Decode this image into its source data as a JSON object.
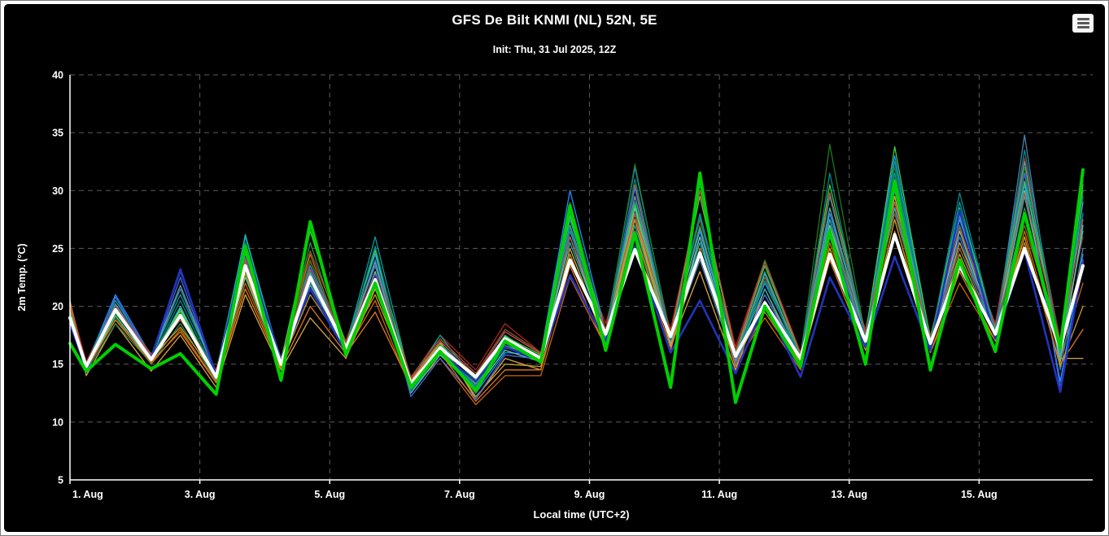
{
  "header": {
    "title": "GFS De Bilt KNMI (NL) 52N, 5E",
    "subtitle": "Init: Thu, 31 Jul 2025, 12Z",
    "menu_icon": "hamburger-icon"
  },
  "colors": {
    "background": "#000000",
    "text": "#ffffff",
    "gridline": "#5c5c5c",
    "axis": "#ffffff",
    "ensemble_mean": "#ffffff",
    "operational": "#00d000",
    "control": "#2233bb"
  },
  "chart_data": {
    "type": "line",
    "title": "GFS De Bilt KNMI (NL) 52N, 5E",
    "subtitle": "Init: Thu, 31 Jul 2025, 12Z",
    "xlabel": "Local time (UTC+2)",
    "ylabel": "2m Temp. (°C)",
    "ylim": [
      5,
      40
    ],
    "y_ticks": [
      5,
      10,
      15,
      20,
      25,
      30,
      35,
      40
    ],
    "xlim": [
      0,
      15.75
    ],
    "x_unit_note": "days since 1 Aug 00:00 local time",
    "x_ticks": [
      {
        "t": 0,
        "label": "1. Aug"
      },
      {
        "t": 2,
        "label": "3. Aug"
      },
      {
        "t": 4,
        "label": "5. Aug"
      },
      {
        "t": 6,
        "label": "7. Aug"
      },
      {
        "t": 8,
        "label": "9. Aug"
      },
      {
        "t": 10,
        "label": "11. Aug"
      },
      {
        "t": 12,
        "label": "13. Aug"
      },
      {
        "t": 14,
        "label": "15. Aug"
      }
    ],
    "grid": "dashed",
    "legend": "none",
    "x": [
      0,
      0.25,
      0.7,
      1.25,
      1.7,
      2.25,
      2.7,
      3.25,
      3.7,
      4.25,
      4.7,
      5.25,
      5.7,
      6.25,
      6.7,
      7.25,
      7.7,
      8.25,
      8.7,
      9.25,
      9.7,
      10.25,
      10.7,
      11.25,
      11.7,
      12.25,
      12.7,
      13.25,
      13.7,
      14.25,
      14.7,
      15.25,
      15.6
    ],
    "series": [
      {
        "name": "member-01",
        "color": "#b22222",
        "width": 1.3,
        "values": [
          20.3,
          15.2,
          20.5,
          15.8,
          19.0,
          14.5,
          24.5,
          15.5,
          23.8,
          17.0,
          24.5,
          13.8,
          17.5,
          14.5,
          18.5,
          16.0,
          26.5,
          18.5,
          27.5,
          18.0,
          29.5,
          16.5,
          24.0,
          16.0,
          27.5,
          18.0,
          30.0,
          17.5,
          26.5,
          18.5,
          32.8,
          17.0,
          26.0
        ]
      },
      {
        "name": "member-02",
        "color": "#cc6600",
        "width": 1.3,
        "values": [
          20.0,
          14.5,
          19.0,
          15.0,
          18.0,
          13.5,
          22.0,
          14.8,
          24.5,
          16.0,
          20.5,
          12.8,
          15.5,
          11.5,
          14.0,
          14.0,
          22.5,
          16.5,
          30.5,
          17.0,
          26.0,
          15.0,
          19.0,
          14.5,
          25.5,
          16.5,
          28.5,
          16.0,
          22.0,
          17.0,
          26.5,
          15.5,
          22.0
        ]
      },
      {
        "name": "member-03",
        "color": "#d9a441",
        "width": 1.3,
        "values": [
          20.5,
          14.0,
          18.5,
          14.4,
          17.5,
          13.0,
          21.0,
          14.5,
          19.0,
          15.5,
          21.5,
          13.5,
          17.0,
          12.0,
          15.5,
          14.5,
          25.0,
          17.0,
          28.0,
          16.5,
          23.0,
          14.5,
          21.5,
          15.0,
          27.0,
          17.5,
          29.5,
          16.5,
          25.5,
          18.0,
          28.0,
          15.5,
          15.5
        ]
      },
      {
        "name": "member-04",
        "color": "#1e90ff",
        "width": 1.3,
        "values": [
          19.2,
          14.9,
          21.0,
          15.7,
          23.0,
          14.2,
          24.8,
          15.5,
          23.5,
          16.8,
          24.5,
          13.0,
          16.5,
          12.5,
          16.0,
          15.8,
          30.0,
          17.8,
          32.0,
          17.5,
          26.5,
          15.5,
          22.0,
          15.8,
          28.0,
          17.5,
          33.0,
          17.0,
          27.5,
          18.0,
          30.5,
          13.5,
          24.5
        ]
      },
      {
        "name": "member-05",
        "color": "#4682b4",
        "width": 1.3,
        "values": [
          19.0,
          14.7,
          20.0,
          15.5,
          21.5,
          14.0,
          23.5,
          15.3,
          22.0,
          16.5,
          23.5,
          12.8,
          16.0,
          13.0,
          16.5,
          15.5,
          26.5,
          17.5,
          28.5,
          17.0,
          24.0,
          15.0,
          20.5,
          15.5,
          26.0,
          17.0,
          30.0,
          16.5,
          25.0,
          17.5,
          34.8,
          14.5,
          25.0
        ]
      },
      {
        "name": "member-06",
        "color": "#00a0a0",
        "width": 1.3,
        "values": [
          19.5,
          15.0,
          20.5,
          15.6,
          21.0,
          14.3,
          26.0,
          15.2,
          23.0,
          16.6,
          26.0,
          13.5,
          17.5,
          13.5,
          17.0,
          15.6,
          27.5,
          17.7,
          29.0,
          17.2,
          28.0,
          15.8,
          23.0,
          15.6,
          29.5,
          17.2,
          31.5,
          17.0,
          29.0,
          17.8,
          31.5,
          16.0,
          28.0
        ]
      },
      {
        "name": "member-07",
        "color": "#20b2aa",
        "width": 1.3,
        "values": [
          19.3,
          14.6,
          19.5,
          15.3,
          20.0,
          13.8,
          26.2,
          15.0,
          21.5,
          16.3,
          22.5,
          13.2,
          16.8,
          13.8,
          17.5,
          15.4,
          25.5,
          17.4,
          27.0,
          17.1,
          25.5,
          15.6,
          21.5,
          15.4,
          27.5,
          16.8,
          28.5,
          16.6,
          26.0,
          17.4,
          29.5,
          15.8,
          26.5
        ]
      },
      {
        "name": "member-08",
        "color": "#2e8b57",
        "width": 1.3,
        "values": [
          18.8,
          14.4,
          18.5,
          15.1,
          18.5,
          13.6,
          24.0,
          14.8,
          25.5,
          16.2,
          25.0,
          13.0,
          16.2,
          13.2,
          16.8,
          15.3,
          28.0,
          17.2,
          26.5,
          17.0,
          30.5,
          15.4,
          22.5,
          15.2,
          28.5,
          16.6,
          30.5,
          16.4,
          27.0,
          17.2,
          28.5,
          16.2,
          30.0
        ]
      },
      {
        "name": "member-09",
        "color": "#1c7a1c",
        "width": 1.3,
        "values": [
          19.8,
          14.9,
          19.0,
          15.5,
          19.5,
          14.1,
          23.0,
          15.1,
          24.0,
          16.5,
          24.0,
          13.4,
          16.5,
          13.6,
          17.2,
          15.7,
          29.0,
          17.6,
          32.3,
          17.3,
          27.0,
          15.9,
          24.0,
          15.7,
          34.0,
          17.4,
          32.0,
          17.1,
          28.0,
          18.0,
          32.0,
          16.6,
          31.0
        ]
      },
      {
        "name": "member-10",
        "color": "#66cdaa",
        "width": 1.3,
        "values": [
          19.1,
          14.5,
          19.2,
          15.2,
          19.8,
          13.7,
          22.5,
          14.9,
          22.8,
          16.1,
          23.0,
          12.5,
          15.8,
          12.8,
          16.2,
          15.2,
          26.0,
          17.3,
          28.5,
          16.8,
          26.0,
          15.2,
          21.0,
          15.3,
          27.0,
          16.9,
          29.0,
          16.7,
          26.5,
          17.6,
          30.0,
          15.2,
          27.0
        ]
      },
      {
        "name": "member-11",
        "color": "#8b5a2b",
        "width": 1.3,
        "values": [
          20.1,
          15.1,
          19.8,
          15.9,
          18.8,
          14.4,
          23.8,
          15.4,
          24.8,
          16.9,
          23.8,
          13.9,
          17.2,
          14.2,
          18.0,
          16.0,
          27.0,
          18.0,
          29.5,
          17.8,
          27.5,
          16.2,
          22.5,
          16.0,
          26.5,
          17.8,
          28.0,
          17.3,
          25.0,
          18.2,
          27.0,
          16.8,
          24.0
        ]
      },
      {
        "name": "member-12",
        "color": "#c8a020",
        "width": 1.3,
        "values": [
          20.4,
          14.8,
          19.5,
          15.5,
          18.2,
          14.0,
          22.8,
          15.0,
          21.0,
          16.4,
          21.0,
          13.6,
          16.8,
          12.2,
          15.0,
          14.8,
          24.5,
          16.8,
          27.5,
          16.6,
          24.5,
          15.3,
          20.0,
          15.1,
          25.0,
          16.5,
          27.5,
          16.3,
          24.5,
          17.3,
          26.0,
          14.8,
          20.0
        ]
      },
      {
        "name": "member-13",
        "color": "#4169e1",
        "width": 1.3,
        "values": [
          18.7,
          14.3,
          20.8,
          15.4,
          22.5,
          13.9,
          24.2,
          15.1,
          22.5,
          16.3,
          24.0,
          12.2,
          15.5,
          12.0,
          15.8,
          15.4,
          28.5,
          17.4,
          30.2,
          17.0,
          25.0,
          15.1,
          21.0,
          15.4,
          26.5,
          17.1,
          31.0,
          16.8,
          26.0,
          17.7,
          31.5,
          13.0,
          24.0
        ]
      },
      {
        "name": "member-14",
        "color": "#e07820",
        "width": 1.3,
        "values": [
          19.9,
          14.6,
          18.8,
          15.2,
          17.8,
          13.4,
          21.5,
          14.7,
          20.0,
          15.9,
          19.5,
          13.1,
          16.0,
          11.8,
          14.5,
          14.5,
          23.5,
          16.4,
          26.5,
          16.2,
          25.0,
          14.8,
          19.5,
          14.9,
          24.0,
          16.2,
          26.5,
          16.0,
          23.0,
          17.0,
          25.5,
          15.0,
          18.0
        ]
      },
      {
        "name": "member-15",
        "color": "#5f9ea0",
        "width": 1.3,
        "values": [
          19.4,
          14.8,
          20.2,
          15.5,
          21.8,
          14.1,
          23.2,
          15.2,
          21.8,
          16.5,
          23.8,
          12.9,
          16.3,
          13.3,
          16.6,
          15.6,
          27.0,
          17.5,
          29.5,
          17.2,
          26.8,
          15.7,
          22.8,
          15.5,
          28.5,
          17.3,
          30.5,
          17.0,
          27.8,
          17.9,
          32.5,
          15.5,
          29.0
        ]
      },
      {
        "name": "member-16",
        "color": "#3ecf3e",
        "width": 1.3,
        "values": [
          19.6,
          14.9,
          19.4,
          15.6,
          19.6,
          14.2,
          24.6,
          15.3,
          26.5,
          16.6,
          24.8,
          13.3,
          16.6,
          13.7,
          17.4,
          15.8,
          27.8,
          17.7,
          28.8,
          17.4,
          29.5,
          16.0,
          23.5,
          15.8,
          30.5,
          17.5,
          33.8,
          17.2,
          28.5,
          18.1,
          30.8,
          16.5,
          30.5
        ]
      },
      {
        "name": "member-17",
        "color": "#c05050",
        "width": 1.3,
        "values": [
          20.2,
          15.0,
          20.0,
          15.7,
          19.3,
          14.3,
          24.0,
          15.3,
          23.2,
          16.7,
          22.8,
          13.7,
          17.0,
          14.0,
          17.8,
          15.9,
          26.0,
          17.9,
          28.0,
          17.6,
          30.0,
          16.1,
          23.8,
          15.9,
          29.8,
          17.6,
          29.0,
          17.2,
          26.8,
          18.3,
          29.8,
          16.9,
          27.5
        ]
      },
      {
        "name": "member-18",
        "color": "#008b8b",
        "width": 1.3,
        "values": [
          19.0,
          14.7,
          19.9,
          15.4,
          20.5,
          14.0,
          25.5,
          15.1,
          22.2,
          16.4,
          25.2,
          12.6,
          16.1,
          13.1,
          16.4,
          15.5,
          26.8,
          17.5,
          31.0,
          17.1,
          27.8,
          15.5,
          22.2,
          15.6,
          31.5,
          17.2,
          32.5,
          16.9,
          29.8,
          17.8,
          33.5,
          16.3,
          29.5
        ]
      },
      {
        "name": "control",
        "color": "#2233bb",
        "width": 2.6,
        "values": [
          18.5,
          14.6,
          19.8,
          15.5,
          23.2,
          14.0,
          25.0,
          15.2,
          21.5,
          16.0,
          22.6,
          13.2,
          16.0,
          13.5,
          16.5,
          15.3,
          22.7,
          17.0,
          25.2,
          16.0,
          20.5,
          14.2,
          20.3,
          13.9,
          22.5,
          16.5,
          24.3,
          16.2,
          28.3,
          17.2,
          24.8,
          12.6,
          23.8
        ]
      },
      {
        "name": "ensemble-mean",
        "color": "#ffffff",
        "width": 4,
        "values": [
          19.0,
          14.8,
          19.7,
          15.4,
          19.2,
          13.9,
          23.5,
          15.0,
          22.5,
          16.4,
          22.3,
          13.3,
          16.4,
          13.9,
          17.2,
          15.5,
          24.0,
          17.6,
          24.9,
          17.4,
          24.6,
          15.7,
          20.3,
          15.5,
          24.5,
          17.0,
          26.2,
          16.8,
          23.5,
          17.6,
          25.0,
          16.4,
          23.5
        ]
      },
      {
        "name": "operational",
        "color": "#00d000",
        "width": 4,
        "values": [
          16.8,
          14.4,
          16.7,
          14.6,
          15.9,
          12.4,
          25.2,
          13.6,
          27.3,
          15.8,
          22.0,
          13.0,
          16.1,
          12.7,
          17.0,
          15.2,
          28.7,
          16.2,
          26.3,
          13.0,
          31.5,
          11.7,
          20.0,
          14.8,
          26.5,
          15.0,
          30.8,
          14.5,
          24.0,
          16.1,
          28.0,
          16.4,
          31.8
        ]
      }
    ]
  }
}
